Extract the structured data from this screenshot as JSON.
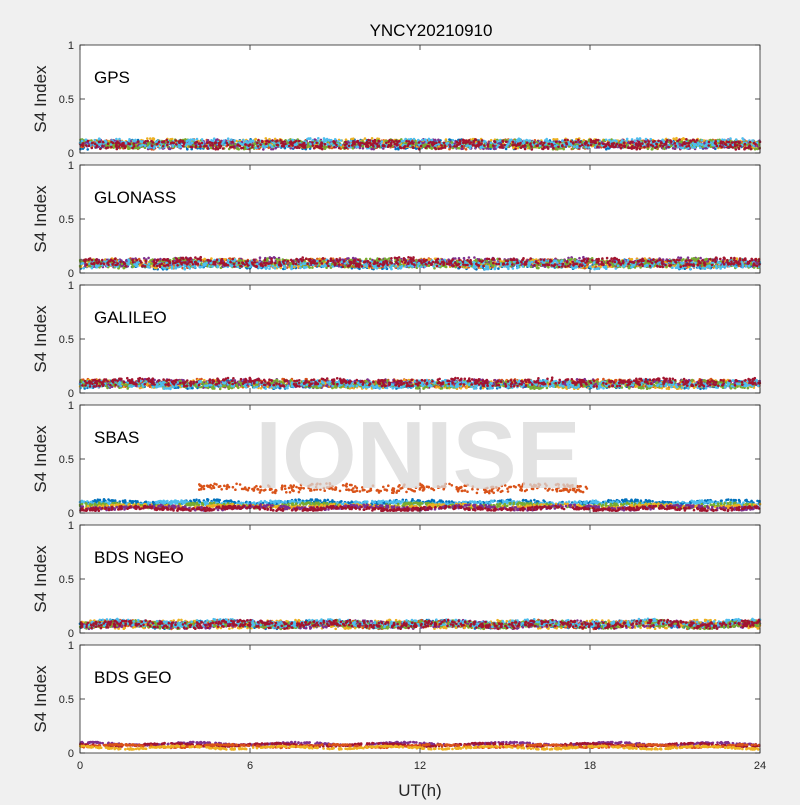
{
  "chart_data": {
    "type": "scatter",
    "title": "YNCY20210910",
    "xlabel": "UT(h)",
    "ylabel": "S4 Index",
    "xlim": [
      0,
      24
    ],
    "ylim": [
      0,
      1
    ],
    "x_ticks": [
      "0",
      "6",
      "12",
      "18",
      "24"
    ],
    "y_ticks": [
      "0",
      "0.5",
      "1"
    ],
    "grid": false,
    "watermark": "IONISE",
    "series_colors": [
      "#0072BD",
      "#D95319",
      "#EDB120",
      "#7E2F8E",
      "#77AC30",
      "#4DBEEE",
      "#A2142F"
    ],
    "panels": [
      {
        "label": "GPS",
        "noise": 0.035,
        "tracks": [
          {
            "c": 0,
            "ranges": [
              [
                0,
                24
              ]
            ],
            "s4": 0.08
          },
          {
            "c": 1,
            "ranges": [
              [
                0,
                24
              ]
            ],
            "s4": 0.08
          },
          {
            "c": 2,
            "ranges": [
              [
                0,
                24
              ]
            ],
            "s4": 0.09
          },
          {
            "c": 3,
            "ranges": [
              [
                0,
                24
              ]
            ],
            "s4": 0.08
          },
          {
            "c": 4,
            "ranges": [
              [
                0,
                24
              ]
            ],
            "s4": 0.08
          },
          {
            "c": 5,
            "ranges": [
              [
                0,
                24
              ]
            ],
            "s4": 0.09
          },
          {
            "c": 6,
            "ranges": [
              [
                0,
                24
              ]
            ],
            "s4": 0.08
          }
        ]
      },
      {
        "label": "GLONASS",
        "noise": 0.035,
        "tracks": [
          {
            "c": 0,
            "ranges": [
              [
                0,
                24
              ]
            ],
            "s4": 0.08
          },
          {
            "c": 1,
            "ranges": [
              [
                0,
                24
              ]
            ],
            "s4": 0.09
          },
          {
            "c": 2,
            "ranges": [
              [
                0,
                24
              ]
            ],
            "s4": 0.09
          },
          {
            "c": 3,
            "ranges": [
              [
                0,
                24
              ]
            ],
            "s4": 0.1
          },
          {
            "c": 4,
            "ranges": [
              [
                0,
                24
              ]
            ],
            "s4": 0.09
          },
          {
            "c": 5,
            "ranges": [
              [
                0,
                24
              ]
            ],
            "s4": 0.08
          },
          {
            "c": 6,
            "ranges": [
              [
                0,
                24
              ]
            ],
            "s4": 0.1
          }
        ]
      },
      {
        "label": "GALILEO",
        "noise": 0.03,
        "tracks": [
          {
            "c": 0,
            "ranges": [
              [
                0,
                24
              ]
            ],
            "s4": 0.08
          },
          {
            "c": 1,
            "ranges": [
              [
                0,
                24
              ]
            ],
            "s4": 0.09
          },
          {
            "c": 2,
            "ranges": [
              [
                0,
                24
              ]
            ],
            "s4": 0.08
          },
          {
            "c": 3,
            "ranges": [
              [
                0,
                24
              ]
            ],
            "s4": 0.09
          },
          {
            "c": 4,
            "ranges": [
              [
                0,
                24
              ]
            ],
            "s4": 0.08
          },
          {
            "c": 5,
            "ranges": [
              [
                0,
                24
              ]
            ],
            "s4": 0.08
          },
          {
            "c": 6,
            "ranges": [
              [
                0,
                24
              ]
            ],
            "s4": 0.1
          }
        ]
      },
      {
        "label": "SBAS",
        "noise": 0.015,
        "tracks": [
          {
            "c": 0,
            "ranges": [
              [
                0,
                24
              ]
            ],
            "s4": 0.1
          },
          {
            "c": 5,
            "ranges": [
              [
                0,
                24
              ]
            ],
            "s4": 0.09
          },
          {
            "c": 4,
            "ranges": [
              [
                0,
                24
              ]
            ],
            "s4": 0.07
          },
          {
            "c": 2,
            "ranges": [
              [
                0,
                24
              ]
            ],
            "s4": 0.06
          },
          {
            "c": 3,
            "ranges": [
              [
                0,
                24
              ]
            ],
            "s4": 0.05
          },
          {
            "c": 6,
            "ranges": [
              [
                0,
                24
              ]
            ],
            "s4": 0.04
          },
          {
            "c": 1,
            "ranges": [
              [
                4.2,
                18
              ]
            ],
            "s4": 0.23,
            "noise": 0.035
          }
        ]
      },
      {
        "label": "BDS NGEO",
        "noise": 0.03,
        "tracks": [
          {
            "c": 0,
            "ranges": [
              [
                0,
                24
              ]
            ],
            "s4": 0.08
          },
          {
            "c": 1,
            "ranges": [
              [
                0,
                24
              ]
            ],
            "s4": 0.08
          },
          {
            "c": 2,
            "ranges": [
              [
                0,
                24
              ]
            ],
            "s4": 0.08
          },
          {
            "c": 3,
            "ranges": [
              [
                0,
                24
              ]
            ],
            "s4": 0.08
          },
          {
            "c": 4,
            "ranges": [
              [
                0,
                24
              ]
            ],
            "s4": 0.08
          },
          {
            "c": 5,
            "ranges": [
              [
                0,
                24
              ]
            ],
            "s4": 0.09
          },
          {
            "c": 6,
            "ranges": [
              [
                0,
                24
              ]
            ],
            "s4": 0.08
          }
        ]
      },
      {
        "label": "BDS GEO",
        "noise": 0.006,
        "tracks": [
          {
            "c": 3,
            "ranges": [
              [
                0,
                24
              ]
            ],
            "s4": 0.085
          },
          {
            "c": 6,
            "ranges": [
              [
                0,
                24
              ]
            ],
            "s4": 0.075
          },
          {
            "c": 1,
            "ranges": [
              [
                0,
                24
              ]
            ],
            "s4": 0.065
          },
          {
            "c": 2,
            "ranges": [
              [
                0,
                24
              ]
            ],
            "s4": 0.05
          }
        ]
      }
    ]
  }
}
